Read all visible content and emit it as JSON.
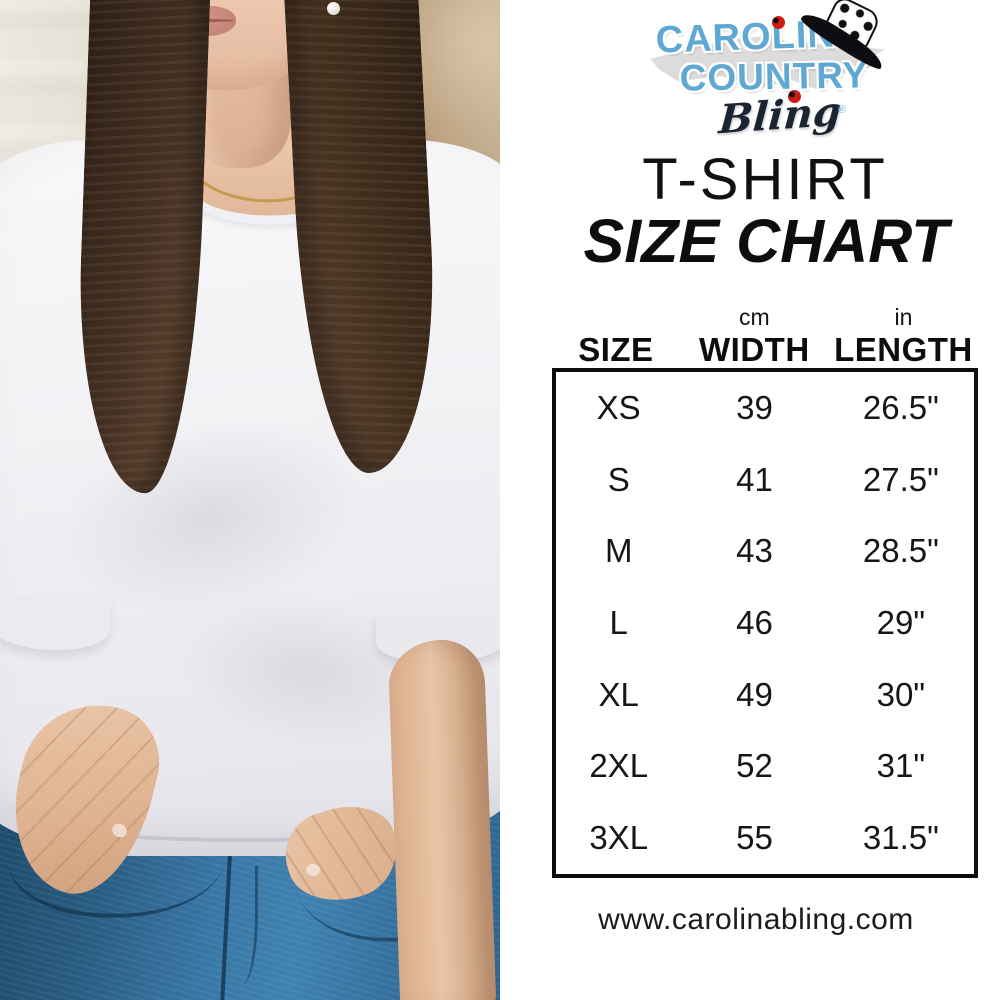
{
  "chart_data": {
    "type": "table",
    "title": "T-SHIRT SIZE CHART",
    "columns": [
      "SIZE",
      "WIDTH (cm)",
      "LENGTH (in)"
    ],
    "rows": [
      [
        "XS",
        "39",
        "26.5\""
      ],
      [
        "S",
        "41",
        "27.5\""
      ],
      [
        "M",
        "43",
        "28.5\""
      ],
      [
        "L",
        "46",
        "29\""
      ],
      [
        "XL",
        "49",
        "30\""
      ],
      [
        "2XL",
        "52",
        "31\""
      ],
      [
        "3XL",
        "55",
        "31.5\""
      ]
    ]
  },
  "logo": {
    "line1": "CAROLINA",
    "line2": "COUNTRY",
    "line3": "Bling",
    "registered_mark": "®"
  },
  "heading": {
    "line1": "T-SHIRT",
    "line2": "SIZE CHART"
  },
  "table": {
    "columns": [
      {
        "unit": "",
        "label": "SIZE"
      },
      {
        "unit": "cm",
        "label": "WIDTH"
      },
      {
        "unit": "in",
        "label": "LENGTH"
      }
    ],
    "rows": [
      {
        "size": "XS",
        "width": "39",
        "length": "26.5\""
      },
      {
        "size": "S",
        "width": "41",
        "length": "27.5\""
      },
      {
        "size": "M",
        "width": "43",
        "length": "28.5\""
      },
      {
        "size": "L",
        "width": "46",
        "length": "29\""
      },
      {
        "size": "XL",
        "width": "49",
        "length": "30\""
      },
      {
        "size": "2XL",
        "width": "52",
        "length": "31\""
      },
      {
        "size": "3XL",
        "width": "55",
        "length": "31.5\""
      }
    ]
  },
  "footer": {
    "website": "www.carolinabling.com"
  },
  "colors": {
    "logo_blue": "#5fa8d3",
    "logo_dark": "#1b2431",
    "ladybug_red": "#cf1c12",
    "map_gray": "#dcdcdc",
    "text_black": "#111111",
    "jeans_blue": "#3876a5",
    "tee_white": "#f2f2f5"
  },
  "photo": {
    "alt": "Woman wearing a plain white crew-neck t-shirt and blue jeans, thumbs hooked in pockets"
  }
}
